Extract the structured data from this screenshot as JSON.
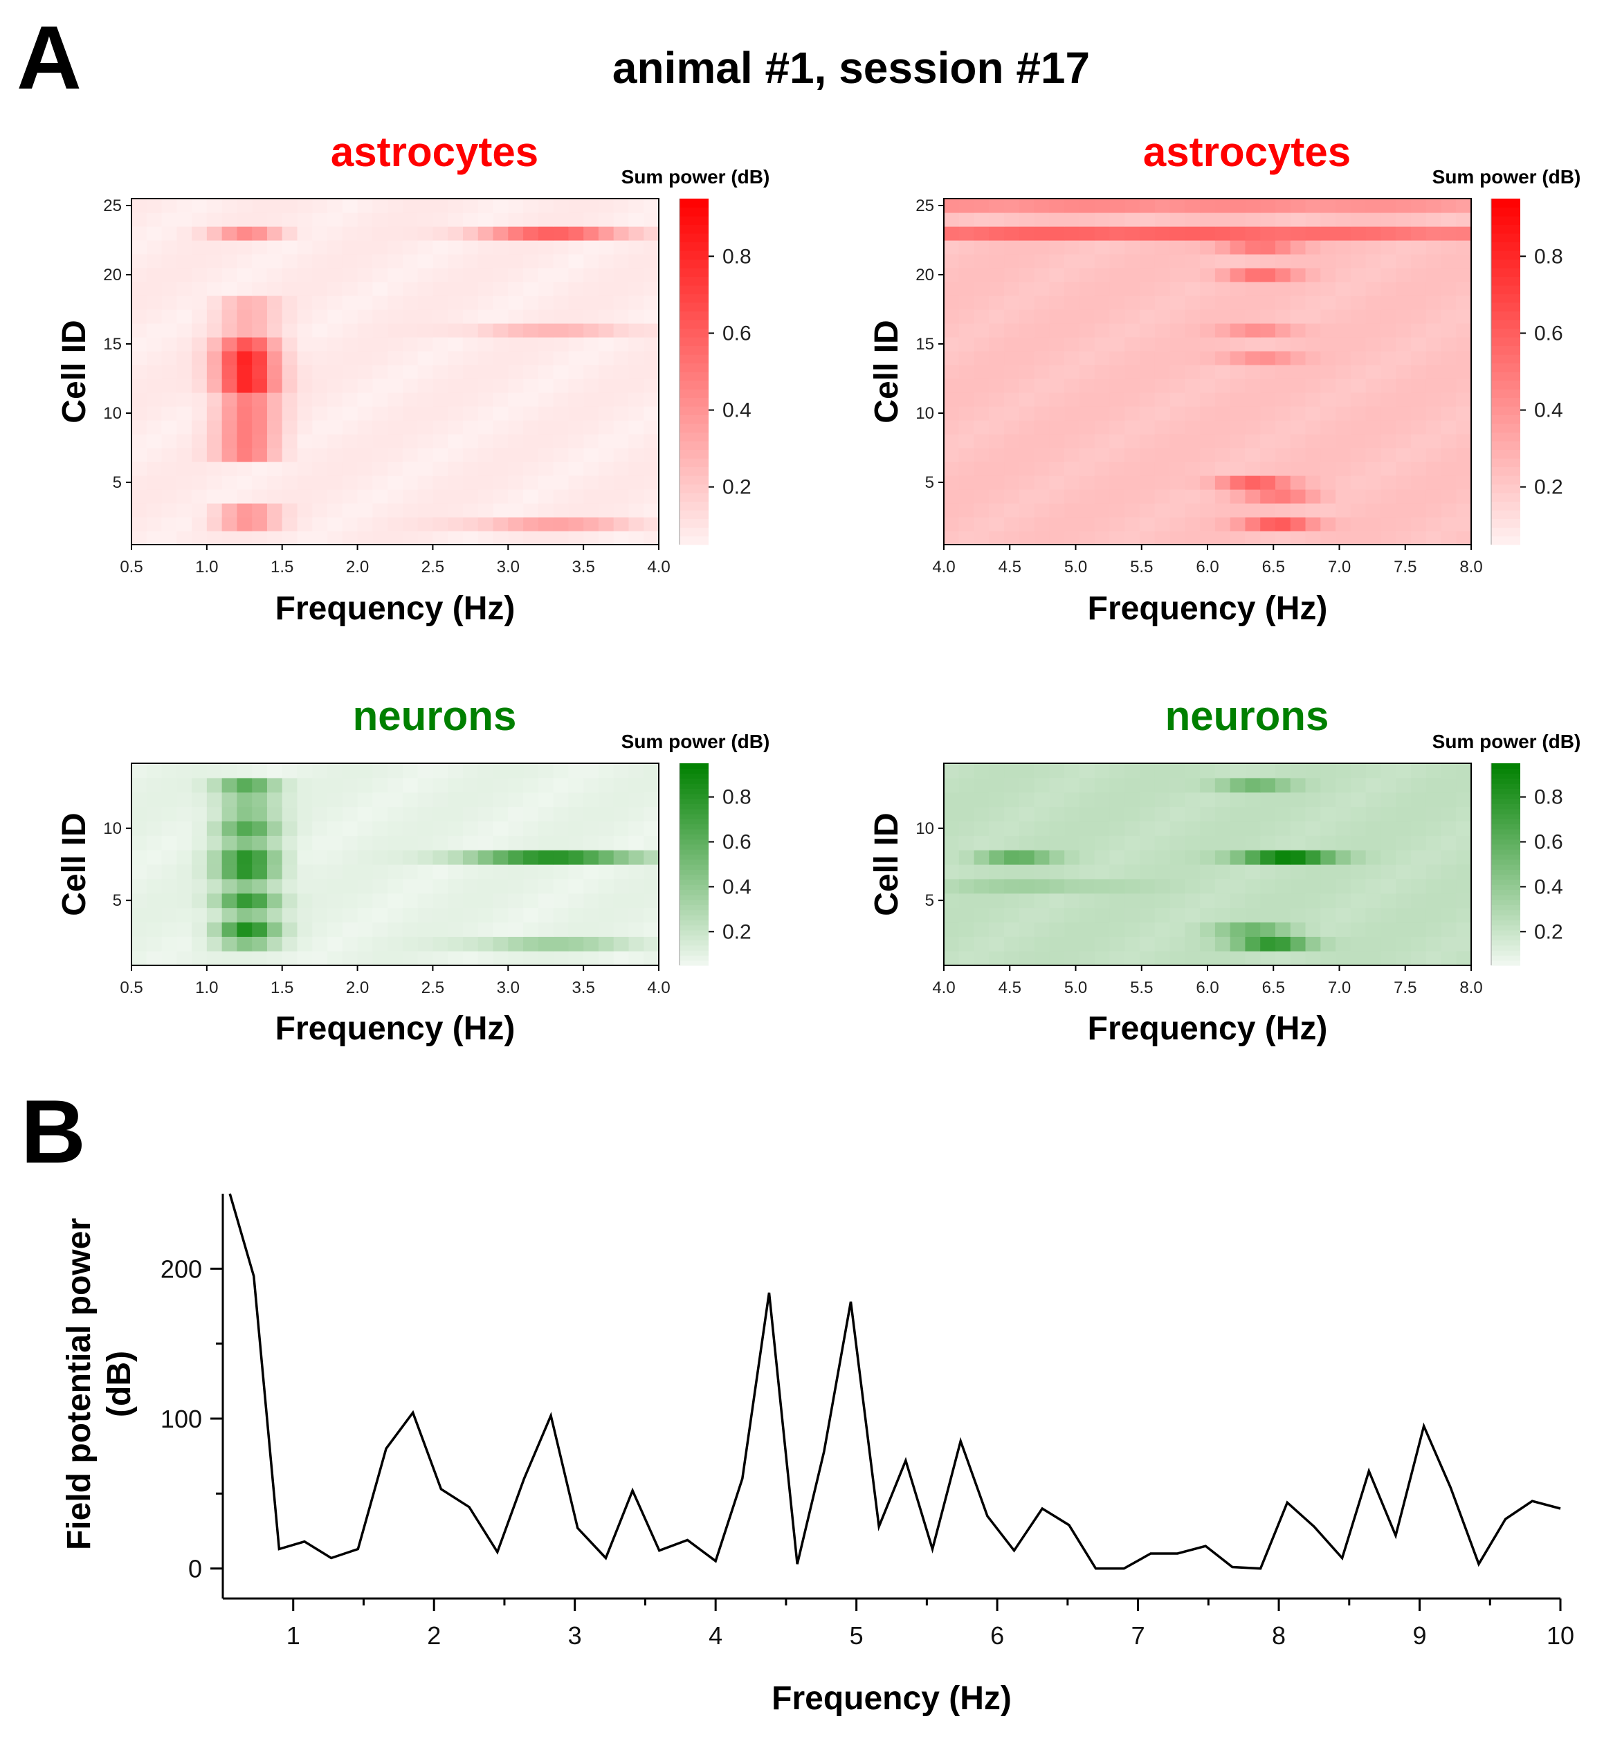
{
  "figure": {
    "panel_a_letter": "A",
    "panel_b_letter": "B",
    "title": "animal #1, session #17"
  },
  "colors": {
    "astro": "#ff0000",
    "neuron": "#008000",
    "line": "#000000"
  },
  "chart_data": [
    {
      "id": "astro-low",
      "type": "heatmap",
      "title": "astrocytes",
      "title_color": "#ff0000",
      "colorbar_title": "Sum power (dB)",
      "colorbar_ticks": [
        "0.2",
        "0.4",
        "0.6",
        "0.8"
      ],
      "colorbar_tick_values": [
        0.2,
        0.4,
        0.6,
        0.8
      ],
      "colorbar_range": [
        0.05,
        0.95
      ],
      "color": "#ff0000",
      "xlabel": "Frequency (Hz)",
      "ylabel": "Cell ID",
      "xlim": [
        0.5,
        4.0
      ],
      "ylim": [
        0.5,
        25.5
      ],
      "xticks": [
        "0.5",
        "1.0",
        "1.5",
        "2.0",
        "2.5",
        "3.0",
        "3.5",
        "4.0"
      ],
      "xtick_values": [
        0.5,
        1.0,
        1.5,
        2.0,
        2.5,
        3.0,
        3.5,
        4.0
      ],
      "yticks": [
        "5",
        "10",
        "15",
        "20",
        "25"
      ],
      "ytick_values": [
        5,
        10,
        15,
        20,
        25
      ],
      "n_cells": 25,
      "base": 0.05,
      "peaks": [
        {
          "cells": [
            2,
            3
          ],
          "f": 1.27,
          "w": 0.14,
          "a": 0.3
        },
        {
          "cells": [
            7,
            8,
            9,
            10,
            11
          ],
          "f": 1.27,
          "w": 0.14,
          "a": 0.4
        },
        {
          "cells": [
            12,
            13,
            14
          ],
          "f": 1.27,
          "w": 0.14,
          "a": 0.75
        },
        {
          "cells": [
            15
          ],
          "f": 1.27,
          "w": 0.14,
          "a": 0.55
        },
        {
          "cells": [
            16,
            17,
            18
          ],
          "f": 1.27,
          "w": 0.14,
          "a": 0.2
        },
        {
          "cells": [
            23
          ],
          "f": 1.27,
          "w": 0.16,
          "a": 0.35
        },
        {
          "cells": [
            23
          ],
          "f": 3.3,
          "w": 0.35,
          "a": 0.5
        },
        {
          "cells": [
            2
          ],
          "f": 3.3,
          "w": 0.4,
          "a": 0.25
        },
        {
          "cells": [
            16
          ],
          "f": 3.3,
          "w": 0.4,
          "a": 0.18
        }
      ]
    },
    {
      "id": "astro-high",
      "type": "heatmap",
      "title": "astrocytes",
      "title_color": "#ff0000",
      "colorbar_title": "Sum power (dB)",
      "colorbar_ticks": [
        "0.2",
        "0.4",
        "0.6",
        "0.8"
      ],
      "colorbar_tick_values": [
        0.2,
        0.4,
        0.6,
        0.8
      ],
      "colorbar_range": [
        0.05,
        0.95
      ],
      "color": "#ff0000",
      "xlabel": "Frequency (Hz)",
      "ylabel": "Cell ID",
      "xlim": [
        4.0,
        8.0
      ],
      "ylim": [
        0.5,
        25.5
      ],
      "xticks": [
        "4.0",
        "4.5",
        "5.0",
        "5.5",
        "6.0",
        "6.5",
        "7.0",
        "7.5",
        "8.0"
      ],
      "xtick_values": [
        4.0,
        4.5,
        5.0,
        5.5,
        6.0,
        6.5,
        7.0,
        7.5,
        8.0
      ],
      "yticks": [
        "5",
        "10",
        "15",
        "20",
        "25"
      ],
      "ytick_values": [
        5,
        10,
        15,
        20,
        25
      ],
      "n_cells": 25,
      "base": 0.2,
      "peaks": [
        {
          "cells": [
            23
          ],
          "f": 5.5,
          "w": 3.0,
          "a": 0.35
        },
        {
          "cells": [
            25
          ],
          "f": 5.5,
          "w": 3.0,
          "a": 0.2
        },
        {
          "cells": [
            2
          ],
          "f": 6.55,
          "w": 0.2,
          "a": 0.4
        },
        {
          "cells": [
            5
          ],
          "f": 6.35,
          "w": 0.2,
          "a": 0.35
        },
        {
          "cells": [
            20,
            22
          ],
          "f": 6.4,
          "w": 0.2,
          "a": 0.3
        },
        {
          "cells": [
            14,
            16
          ],
          "f": 6.4,
          "w": 0.2,
          "a": 0.2
        },
        {
          "cells": [
            4
          ],
          "f": 6.55,
          "w": 0.2,
          "a": 0.25
        }
      ]
    },
    {
      "id": "neuron-low",
      "type": "heatmap",
      "title": "neurons",
      "title_color": "#008000",
      "colorbar_title": "Sum power (dB)",
      "colorbar_ticks": [
        "0.2",
        "0.4",
        "0.6",
        "0.8"
      ],
      "colorbar_tick_values": [
        0.2,
        0.4,
        0.6,
        0.8
      ],
      "colorbar_range": [
        0.05,
        0.95
      ],
      "color": "#008000",
      "xlabel": "Frequency (Hz)",
      "ylabel": "Cell ID",
      "xlim": [
        0.5,
        4.0
      ],
      "ylim": [
        0.5,
        14.5
      ],
      "xticks": [
        "0.5",
        "1.0",
        "1.5",
        "2.0",
        "2.5",
        "3.0",
        "3.5",
        "4.0"
      ],
      "xtick_values": [
        0.5,
        1.0,
        1.5,
        2.0,
        2.5,
        3.0,
        3.5,
        4.0
      ],
      "yticks": [
        "5",
        "10"
      ],
      "ytick_values": [
        5,
        10
      ],
      "n_cells": 14,
      "base": 0.06,
      "peaks": [
        {
          "cells": [
            3
          ],
          "f": 1.27,
          "w": 0.14,
          "a": 0.75
        },
        {
          "cells": [
            5,
            7,
            8
          ],
          "f": 1.27,
          "w": 0.14,
          "a": 0.7
        },
        {
          "cells": [
            10,
            13
          ],
          "f": 1.27,
          "w": 0.14,
          "a": 0.55
        },
        {
          "cells": [
            2,
            4,
            6,
            9,
            11,
            12
          ],
          "f": 1.27,
          "w": 0.14,
          "a": 0.35
        },
        {
          "cells": [
            8
          ],
          "f": 3.3,
          "w": 0.4,
          "a": 0.7
        },
        {
          "cells": [
            2
          ],
          "f": 3.3,
          "w": 0.4,
          "a": 0.25
        }
      ]
    },
    {
      "id": "neuron-high",
      "type": "heatmap",
      "title": "neurons",
      "title_color": "#008000",
      "colorbar_title": "Sum power (dB)",
      "colorbar_ticks": [
        "0.2",
        "0.4",
        "0.6",
        "0.8"
      ],
      "colorbar_tick_values": [
        0.2,
        0.4,
        0.6,
        0.8
      ],
      "colorbar_range": [
        0.05,
        0.95
      ],
      "color": "#008000",
      "xlabel": "Frequency (Hz)",
      "ylabel": "Cell ID",
      "xlim": [
        4.0,
        8.0
      ],
      "ylim": [
        0.5,
        14.5
      ],
      "xticks": [
        "4.0",
        "4.5",
        "5.0",
        "5.5",
        "6.0",
        "6.5",
        "7.0",
        "7.5",
        "8.0"
      ],
      "xtick_values": [
        4.0,
        4.5,
        5.0,
        5.5,
        6.0,
        6.5,
        7.0,
        7.5,
        8.0
      ],
      "yticks": [
        "5",
        "10"
      ],
      "ytick_values": [
        5,
        10
      ],
      "n_cells": 14,
      "base": 0.2,
      "peaks": [
        {
          "cells": [
            8
          ],
          "f": 6.6,
          "w": 0.25,
          "a": 0.7
        },
        {
          "cells": [
            2
          ],
          "f": 6.5,
          "w": 0.2,
          "a": 0.55
        },
        {
          "cells": [
            3,
            13
          ],
          "f": 6.35,
          "w": 0.2,
          "a": 0.3
        },
        {
          "cells": [
            8
          ],
          "f": 4.55,
          "w": 0.2,
          "a": 0.35
        },
        {
          "cells": [
            6
          ],
          "f": 4.7,
          "w": 0.5,
          "a": 0.12
        }
      ]
    },
    {
      "id": "field-potential",
      "type": "line",
      "xlabel": "Frequency (Hz)",
      "ylabel": [
        "Field potential power",
        "(dB)"
      ],
      "xlim": [
        0.5,
        10.0
      ],
      "ylim": [
        -20,
        250
      ],
      "xticks": [
        "1",
        "2",
        "3",
        "4",
        "5",
        "6",
        "7",
        "8",
        "9",
        "10"
      ],
      "xtick_values": [
        1,
        2,
        3,
        4,
        5,
        6,
        7,
        8,
        9,
        10
      ],
      "yticks": [
        "0",
        "100",
        "200"
      ],
      "ytick_values": [
        0,
        100,
        200
      ],
      "series": [
        {
          "x": [
            0.55,
            0.72,
            0.9,
            1.08,
            1.27,
            1.46,
            1.66,
            1.85,
            2.05,
            2.25,
            2.45,
            2.64,
            2.83,
            3.02,
            3.22,
            3.41,
            3.6,
            3.8,
            4.0,
            4.19,
            4.38,
            4.58,
            4.77,
            4.96,
            5.16,
            5.35,
            5.54,
            5.74,
            5.93,
            6.12,
            6.32,
            6.51,
            6.7,
            6.9,
            7.09,
            7.28,
            7.48,
            7.67,
            7.87,
            8.06,
            8.25,
            8.45,
            8.64,
            8.83,
            9.03,
            9.22,
            9.42,
            9.61,
            9.8,
            10.0
          ],
          "y": [
            250,
            195,
            13,
            18,
            7,
            13,
            80,
            104,
            53,
            41,
            11,
            60,
            102,
            27,
            7,
            52,
            12,
            19,
            5,
            60,
            184,
            3,
            78,
            178,
            28,
            72,
            13,
            85,
            35,
            12,
            40,
            29,
            0,
            0,
            10,
            10,
            15,
            1,
            0,
            44,
            28,
            7,
            65,
            22,
            95,
            54,
            3,
            33,
            45,
            40
          ]
        }
      ]
    }
  ]
}
